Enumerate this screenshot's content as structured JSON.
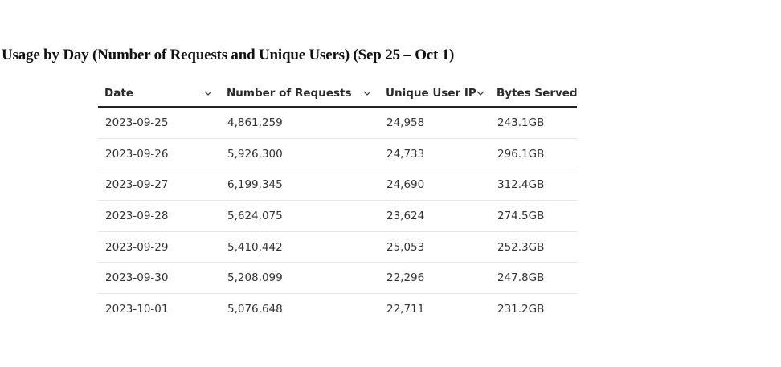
{
  "title": "Usage by Day (Number of Requests and Unique Users) (Sep 25 – Oct 1)",
  "table": {
    "columns": [
      {
        "label": "Date",
        "sortable": true
      },
      {
        "label": "Number of Requests",
        "sortable": true
      },
      {
        "label": "Unique User IP",
        "sortable": true
      },
      {
        "label": "Bytes Served",
        "sortable": false
      }
    ],
    "rows": [
      {
        "date": "2023-09-25",
        "requests": "4,861,259",
        "unique_ip": "24,958",
        "bytes": "243.1GB"
      },
      {
        "date": "2023-09-26",
        "requests": "5,926,300",
        "unique_ip": "24,733",
        "bytes": "296.1GB"
      },
      {
        "date": "2023-09-27",
        "requests": "6,199,345",
        "unique_ip": "24,690",
        "bytes": "312.4GB"
      },
      {
        "date": "2023-09-28",
        "requests": "5,624,075",
        "unique_ip": "23,624",
        "bytes": "274.5GB"
      },
      {
        "date": "2023-09-29",
        "requests": "5,410,442",
        "unique_ip": "25,053",
        "bytes": "252.3GB"
      },
      {
        "date": "2023-09-30",
        "requests": "5,208,099",
        "unique_ip": "22,296",
        "bytes": "247.8GB"
      },
      {
        "date": "2023-10-01",
        "requests": "5,076,648",
        "unique_ip": "22,711",
        "bytes": "231.2GB"
      }
    ]
  },
  "icons": {
    "sort": "chevron-down-icon"
  }
}
